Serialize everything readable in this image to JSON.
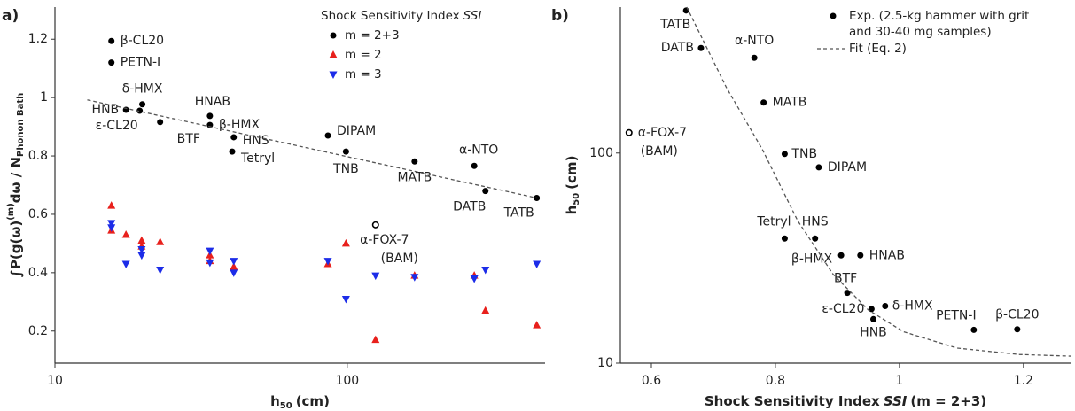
{
  "chart_data": [
    {
      "type": "scatter",
      "panel_label": "a)",
      "xscale": "log",
      "yscale": "linear",
      "xlim": [
        10,
        475
      ],
      "ylim": [
        0.09,
        1.31
      ],
      "xticks": [
        10,
        100
      ],
      "yticks": [
        0.2,
        0.4,
        0.6,
        0.8,
        1.0,
        1.2
      ],
      "x_label": [
        "h",
        "50",
        "(cm)"
      ],
      "y_label": [
        "∫P(g(ω)",
        "(m)",
        "dω / N",
        "Phonon Bath"
      ],
      "legend": {
        "corner": "upper right",
        "title": [
          "Shock Sensitivity Index",
          "SSI"
        ]
      },
      "series": [
        {
          "name": "m = 2+3",
          "color": "#000000",
          "marker": "circle",
          "x": [
            15.6,
            15.6,
            17.5,
            19.5,
            19.9,
            22.9,
            33.9,
            33.9,
            40.9,
            40.4,
            85.9,
            99,
            170,
            272,
            297,
            445
          ],
          "y": [
            1.194,
            1.12,
            0.958,
            0.955,
            0.977,
            0.916,
            0.937,
            0.906,
            0.864,
            0.815,
            0.87,
            0.815,
            0.781,
            0.766,
            0.68,
            0.656
          ],
          "labels": [
            "β-CL20",
            "PETN-I",
            "HNB",
            "ε-CL20",
            "δ-HMX",
            "BTF",
            "HNAB",
            "β-HMX",
            "HNS",
            "Tetryl",
            "DIPAM",
            "TNB",
            "MATB",
            "α-NTO",
            "DATB",
            "TATB"
          ]
        },
        {
          "name": "m = 2",
          "color": "#e8201c",
          "marker": "triangle-up",
          "x": [
            15.6,
            15.6,
            17.5,
            19.8,
            19.8,
            22.9,
            33.9,
            33.9,
            40.9,
            85.9,
            99,
            125,
            170,
            272,
            297,
            445
          ],
          "y": [
            0.63,
            0.545,
            0.53,
            0.51,
            0.49,
            0.505,
            0.46,
            0.44,
            0.42,
            0.43,
            0.5,
            0.17,
            0.39,
            0.39,
            0.27,
            0.22
          ]
        },
        {
          "name": "m = 3",
          "color": "#1c2ce8",
          "marker": "triangle-down",
          "x": [
            15.6,
            15.6,
            17.5,
            19.8,
            19.8,
            22.9,
            33.9,
            33.9,
            40.9,
            40.9,
            85.9,
            99,
            125,
            170,
            272,
            297,
            445
          ],
          "y": [
            0.57,
            0.555,
            0.43,
            0.48,
            0.46,
            0.41,
            0.475,
            0.435,
            0.44,
            0.4,
            0.44,
            0.31,
            0.39,
            0.385,
            0.38,
            0.41,
            0.43
          ]
        },
        {
          "color": "#000000",
          "marker": "open-circle",
          "x": [
            125
          ],
          "y": [
            0.564
          ],
          "labels": [
            "α-FOX-7"
          ],
          "label_note": "(BAM)"
        },
        {
          "color": "#555555",
          "marker": "dashed-line",
          "x": [
            12.9,
            445
          ],
          "y": [
            0.992,
            0.656
          ]
        }
      ]
    },
    {
      "type": "scatter",
      "panel_label": "b)",
      "xscale": "linear",
      "yscale": "log",
      "xlim": [
        0.55,
        1.276
      ],
      "ylim": [
        10,
        495
      ],
      "xticks": [
        0.6,
        0.8,
        1.0,
        1.2
      ],
      "yticks": [
        10,
        100
      ],
      "x_label": [
        "Shock Sensitivity Index",
        "SSI",
        "(m = 2+3)"
      ],
      "y_label": [
        "h",
        "50",
        "(cm)"
      ],
      "legend": {
        "corner": "upper right"
      },
      "series": [
        {
          "name": "Exp. (2.5-kg hammer with grit",
          "name_line2": "and 30-40 mg samples)",
          "color": "#000000",
          "marker": "circle",
          "x": [
            0.656,
            0.68,
            0.766,
            0.781,
            0.815,
            0.87,
            0.815,
            0.864,
            0.906,
            0.937,
            0.916,
            0.955,
            0.977,
            0.958,
            1.12,
            1.19
          ],
          "y": [
            477,
            316,
            284,
            174,
            99,
            85.5,
            39.2,
            39.2,
            32.6,
            32.6,
            21.6,
            18.1,
            18.7,
            16.2,
            14.4,
            14.5
          ],
          "labels": [
            "TATB",
            "DATB",
            "α-NTO",
            "MATB",
            "TNB",
            "DIPAM",
            "Tetryl",
            "HNS",
            "β-HMX",
            "HNAB",
            "BTF",
            "ε-CL20",
            "δ-HMX",
            "HNB",
            "PETN-I",
            "β-CL20"
          ]
        },
        {
          "color": "#000000",
          "marker": "open-circle",
          "x": [
            0.564
          ],
          "y": [
            125
          ],
          "labels": [
            "α-FOX-7"
          ],
          "label_note": "(BAM)"
        },
        {
          "name": "Fit (Eq. 2)",
          "color": "#555555",
          "marker": "dashed-line",
          "x": [
            0.657,
            0.721,
            0.779,
            0.836,
            0.893,
            0.95,
            1.007,
            1.093,
            1.193,
            1.276
          ],
          "y": [
            495,
            205,
            104,
            47.6,
            26.5,
            17.9,
            14.1,
            11.8,
            11.0,
            10.8
          ]
        }
      ]
    }
  ]
}
